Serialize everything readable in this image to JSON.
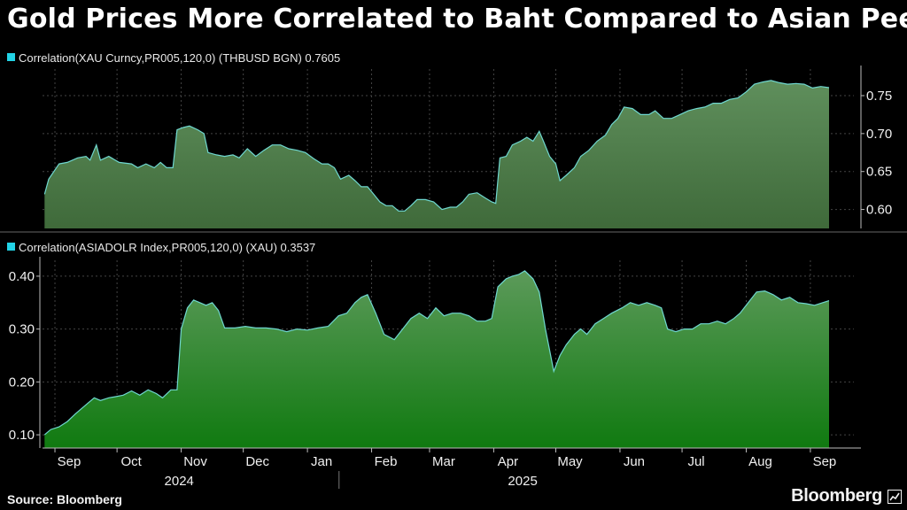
{
  "title": "Gold Prices More Correlated to Baht Compared to Asian Peers",
  "source": "Source: Bloomberg",
  "brand": "Bloomberg",
  "colors": {
    "legend_swatch": "#22d3e6",
    "line": "#6fd7cf",
    "top_fill_top": "#5f8f5c",
    "top_fill_bottom": "#3f6a3a",
    "bottom_fill_top": "#5c9a5a",
    "bottom_fill_bottom": "#107a10",
    "grid": "#444444"
  },
  "chart_data": [
    {
      "type": "area",
      "legend": "Correlation(XAU Curncy,PR005,120,0) (THBUSD BGN) 0.7605",
      "yaxis_side": "right",
      "ylim": [
        0.575,
        0.785
      ],
      "yticks": [
        0.6,
        0.65,
        0.7,
        0.75
      ],
      "ytick_labels": [
        "0.60",
        "0.65",
        "0.70",
        "0.75"
      ],
      "points": [
        [
          "2024-08-27",
          0.62
        ],
        [
          "2024-08-29",
          0.64
        ],
        [
          "2024-09-03",
          0.66
        ],
        [
          "2024-09-07",
          0.662
        ],
        [
          "2024-09-12",
          0.668
        ],
        [
          "2024-09-16",
          0.67
        ],
        [
          "2024-09-18",
          0.665
        ],
        [
          "2024-09-21",
          0.685
        ],
        [
          "2024-09-23",
          0.665
        ],
        [
          "2024-09-27",
          0.67
        ],
        [
          "2024-10-02",
          0.662
        ],
        [
          "2024-10-08",
          0.66
        ],
        [
          "2024-10-11",
          0.655
        ],
        [
          "2024-10-15",
          0.66
        ],
        [
          "2024-10-19",
          0.655
        ],
        [
          "2024-10-22",
          0.662
        ],
        [
          "2024-10-25",
          0.655
        ],
        [
          "2024-10-28",
          0.655
        ],
        [
          "2024-10-30",
          0.705
        ],
        [
          "2024-11-02",
          0.708
        ],
        [
          "2024-11-05",
          0.71
        ],
        [
          "2024-11-09",
          0.705
        ],
        [
          "2024-11-12",
          0.7
        ],
        [
          "2024-11-14",
          0.675
        ],
        [
          "2024-11-18",
          0.672
        ],
        [
          "2024-11-22",
          0.67
        ],
        [
          "2024-11-26",
          0.672
        ],
        [
          "2024-11-29",
          0.668
        ],
        [
          "2024-12-03",
          0.68
        ],
        [
          "2024-12-07",
          0.67
        ],
        [
          "2024-12-11",
          0.678
        ],
        [
          "2024-12-15",
          0.685
        ],
        [
          "2024-12-19",
          0.685
        ],
        [
          "2024-12-23",
          0.68
        ],
        [
          "2024-12-27",
          0.678
        ],
        [
          "2024-12-31",
          0.675
        ],
        [
          "2025-01-04",
          0.667
        ],
        [
          "2025-01-08",
          0.66
        ],
        [
          "2025-01-11",
          0.66
        ],
        [
          "2025-01-14",
          0.655
        ],
        [
          "2025-01-17",
          0.64
        ],
        [
          "2025-01-21",
          0.645
        ],
        [
          "2025-01-24",
          0.638
        ],
        [
          "2025-01-27",
          0.63
        ],
        [
          "2025-01-30",
          0.63
        ],
        [
          "2025-02-02",
          0.62
        ],
        [
          "2025-02-05",
          0.61
        ],
        [
          "2025-02-08",
          0.605
        ],
        [
          "2025-02-11",
          0.605
        ],
        [
          "2025-02-14",
          0.598
        ],
        [
          "2025-02-17",
          0.598
        ],
        [
          "2025-02-20",
          0.605
        ],
        [
          "2025-02-23",
          0.613
        ],
        [
          "2025-02-27",
          0.613
        ],
        [
          "2025-03-03",
          0.61
        ],
        [
          "2025-03-07",
          0.6
        ],
        [
          "2025-03-11",
          0.603
        ],
        [
          "2025-03-14",
          0.603
        ],
        [
          "2025-03-17",
          0.61
        ],
        [
          "2025-03-20",
          0.62
        ],
        [
          "2025-03-24",
          0.622
        ],
        [
          "2025-03-28",
          0.615
        ],
        [
          "2025-03-31",
          0.61
        ],
        [
          "2025-04-02",
          0.608
        ],
        [
          "2025-04-04",
          0.668
        ],
        [
          "2025-04-07",
          0.67
        ],
        [
          "2025-04-10",
          0.685
        ],
        [
          "2025-04-14",
          0.69
        ],
        [
          "2025-04-17",
          0.695
        ],
        [
          "2025-04-20",
          0.69
        ],
        [
          "2025-04-23",
          0.703
        ],
        [
          "2025-04-25",
          0.69
        ],
        [
          "2025-04-28",
          0.67
        ],
        [
          "2025-05-01",
          0.66
        ],
        [
          "2025-05-03",
          0.638
        ],
        [
          "2025-05-06",
          0.645
        ],
        [
          "2025-05-10",
          0.655
        ],
        [
          "2025-05-13",
          0.67
        ],
        [
          "2025-05-17",
          0.678
        ],
        [
          "2025-05-21",
          0.69
        ],
        [
          "2025-05-25",
          0.698
        ],
        [
          "2025-05-28",
          0.712
        ],
        [
          "2025-05-31",
          0.72
        ],
        [
          "2025-06-03",
          0.735
        ],
        [
          "2025-06-07",
          0.733
        ],
        [
          "2025-06-11",
          0.725
        ],
        [
          "2025-06-15",
          0.725
        ],
        [
          "2025-06-18",
          0.73
        ],
        [
          "2025-06-22",
          0.72
        ],
        [
          "2025-06-26",
          0.72
        ],
        [
          "2025-06-30",
          0.725
        ],
        [
          "2025-07-04",
          0.73
        ],
        [
          "2025-07-08",
          0.733
        ],
        [
          "2025-07-12",
          0.735
        ],
        [
          "2025-07-16",
          0.74
        ],
        [
          "2025-07-20",
          0.74
        ],
        [
          "2025-07-24",
          0.745
        ],
        [
          "2025-07-28",
          0.747
        ],
        [
          "2025-08-01",
          0.755
        ],
        [
          "2025-08-05",
          0.765
        ],
        [
          "2025-08-09",
          0.768
        ],
        [
          "2025-08-13",
          0.77
        ],
        [
          "2025-08-17",
          0.767
        ],
        [
          "2025-08-21",
          0.765
        ],
        [
          "2025-08-25",
          0.766
        ],
        [
          "2025-08-29",
          0.765
        ],
        [
          "2025-09-02",
          0.76
        ],
        [
          "2025-09-06",
          0.762
        ],
        [
          "2025-09-10",
          0.7605
        ]
      ]
    },
    {
      "type": "area",
      "legend": "Correlation(ASIADOLR Index,PR005,120,0) (XAU) 0.3537",
      "yaxis_side": "left",
      "ylim": [
        0.075,
        0.43
      ],
      "yticks": [
        0.1,
        0.2,
        0.3,
        0.4
      ],
      "ytick_labels": [
        "0.10",
        "0.20",
        "0.30",
        "0.40"
      ],
      "points": [
        [
          "2024-08-27",
          0.1
        ],
        [
          "2024-08-30",
          0.11
        ],
        [
          "2024-09-03",
          0.115
        ],
        [
          "2024-09-07",
          0.125
        ],
        [
          "2024-09-11",
          0.14
        ],
        [
          "2024-09-14",
          0.15
        ],
        [
          "2024-09-17",
          0.16
        ],
        [
          "2024-09-20",
          0.17
        ],
        [
          "2024-09-23",
          0.165
        ],
        [
          "2024-09-27",
          0.17
        ],
        [
          "2024-09-30",
          0.172
        ],
        [
          "2024-10-04",
          0.175
        ],
        [
          "2024-10-08",
          0.183
        ],
        [
          "2024-10-12",
          0.175
        ],
        [
          "2024-10-16",
          0.185
        ],
        [
          "2024-10-20",
          0.178
        ],
        [
          "2024-10-23",
          0.17
        ],
        [
          "2024-10-27",
          0.185
        ],
        [
          "2024-10-30",
          0.185
        ],
        [
          "2024-11-01",
          0.3
        ],
        [
          "2024-11-04",
          0.34
        ],
        [
          "2024-11-07",
          0.355
        ],
        [
          "2024-11-10",
          0.35
        ],
        [
          "2024-11-13",
          0.345
        ],
        [
          "2024-11-16",
          0.35
        ],
        [
          "2024-11-19",
          0.335
        ],
        [
          "2024-11-22",
          0.302
        ],
        [
          "2024-11-27",
          0.302
        ],
        [
          "2024-12-02",
          0.305
        ],
        [
          "2024-12-07",
          0.302
        ],
        [
          "2024-12-12",
          0.302
        ],
        [
          "2024-12-17",
          0.3
        ],
        [
          "2024-12-22",
          0.295
        ],
        [
          "2024-12-27",
          0.3
        ],
        [
          "2025-01-01",
          0.298
        ],
        [
          "2025-01-06",
          0.302
        ],
        [
          "2025-01-11",
          0.305
        ],
        [
          "2025-01-16",
          0.325
        ],
        [
          "2025-01-20",
          0.33
        ],
        [
          "2025-01-24",
          0.35
        ],
        [
          "2025-01-27",
          0.36
        ],
        [
          "2025-01-30",
          0.365
        ],
        [
          "2025-02-03",
          0.33
        ],
        [
          "2025-02-07",
          0.29
        ],
        [
          "2025-02-12",
          0.28
        ],
        [
          "2025-02-16",
          0.3
        ],
        [
          "2025-02-20",
          0.32
        ],
        [
          "2025-02-24",
          0.33
        ],
        [
          "2025-02-28",
          0.32
        ],
        [
          "2025-03-04",
          0.34
        ],
        [
          "2025-03-08",
          0.325
        ],
        [
          "2025-03-12",
          0.33
        ],
        [
          "2025-03-16",
          0.33
        ],
        [
          "2025-03-20",
          0.325
        ],
        [
          "2025-03-24",
          0.315
        ],
        [
          "2025-03-28",
          0.315
        ],
        [
          "2025-03-31",
          0.32
        ],
        [
          "2025-04-03",
          0.38
        ],
        [
          "2025-04-07",
          0.395
        ],
        [
          "2025-04-10",
          0.4
        ],
        [
          "2025-04-13",
          0.403
        ],
        [
          "2025-04-16",
          0.41
        ],
        [
          "2025-04-20",
          0.395
        ],
        [
          "2025-04-23",
          0.37
        ],
        [
          "2025-04-26",
          0.3
        ],
        [
          "2025-04-28",
          0.26
        ],
        [
          "2025-04-30",
          0.22
        ],
        [
          "2025-05-03",
          0.25
        ],
        [
          "2025-05-06",
          0.27
        ],
        [
          "2025-05-10",
          0.29
        ],
        [
          "2025-05-13",
          0.3
        ],
        [
          "2025-05-16",
          0.29
        ],
        [
          "2025-05-20",
          0.31
        ],
        [
          "2025-05-24",
          0.32
        ],
        [
          "2025-05-28",
          0.33
        ],
        [
          "2025-06-02",
          0.34
        ],
        [
          "2025-06-06",
          0.35
        ],
        [
          "2025-06-10",
          0.345
        ],
        [
          "2025-06-14",
          0.35
        ],
        [
          "2025-06-18",
          0.345
        ],
        [
          "2025-06-21",
          0.34
        ],
        [
          "2025-06-24",
          0.3
        ],
        [
          "2025-06-28",
          0.295
        ],
        [
          "2025-07-02",
          0.3
        ],
        [
          "2025-07-06",
          0.3
        ],
        [
          "2025-07-10",
          0.31
        ],
        [
          "2025-07-14",
          0.31
        ],
        [
          "2025-07-18",
          0.315
        ],
        [
          "2025-07-22",
          0.31
        ],
        [
          "2025-07-26",
          0.32
        ],
        [
          "2025-07-29",
          0.33
        ],
        [
          "2025-08-02",
          0.35
        ],
        [
          "2025-08-06",
          0.37
        ],
        [
          "2025-08-10",
          0.372
        ],
        [
          "2025-08-14",
          0.365
        ],
        [
          "2025-08-18",
          0.355
        ],
        [
          "2025-08-22",
          0.36
        ],
        [
          "2025-08-26",
          0.35
        ],
        [
          "2025-08-30",
          0.348
        ],
        [
          "2025-09-03",
          0.345
        ],
        [
          "2025-09-07",
          0.35
        ],
        [
          "2025-09-10",
          0.3537
        ]
      ]
    }
  ],
  "x_axis": {
    "month_labels": [
      {
        "label": "Sep",
        "date": "2024-09-01"
      },
      {
        "label": "Oct",
        "date": "2024-10-01"
      },
      {
        "label": "Nov",
        "date": "2024-11-01"
      },
      {
        "label": "Dec",
        "date": "2024-12-01"
      },
      {
        "label": "Jan",
        "date": "2025-01-01"
      },
      {
        "label": "Feb",
        "date": "2025-02-01"
      },
      {
        "label": "Mar",
        "date": "2025-03-01"
      },
      {
        "label": "Apr",
        "date": "2025-04-01"
      },
      {
        "label": "May",
        "date": "2025-05-01"
      },
      {
        "label": "Jun",
        "date": "2025-06-01"
      },
      {
        "label": "Jul",
        "date": "2025-07-01"
      },
      {
        "label": "Aug",
        "date": "2025-08-01"
      },
      {
        "label": "Sep",
        "date": "2025-09-01"
      }
    ],
    "year_labels": [
      {
        "label": "2024",
        "date": "2024-10-31"
      },
      {
        "label": "2025",
        "date": "2025-04-15"
      }
    ],
    "year_divider_date": "2024-12-31"
  }
}
